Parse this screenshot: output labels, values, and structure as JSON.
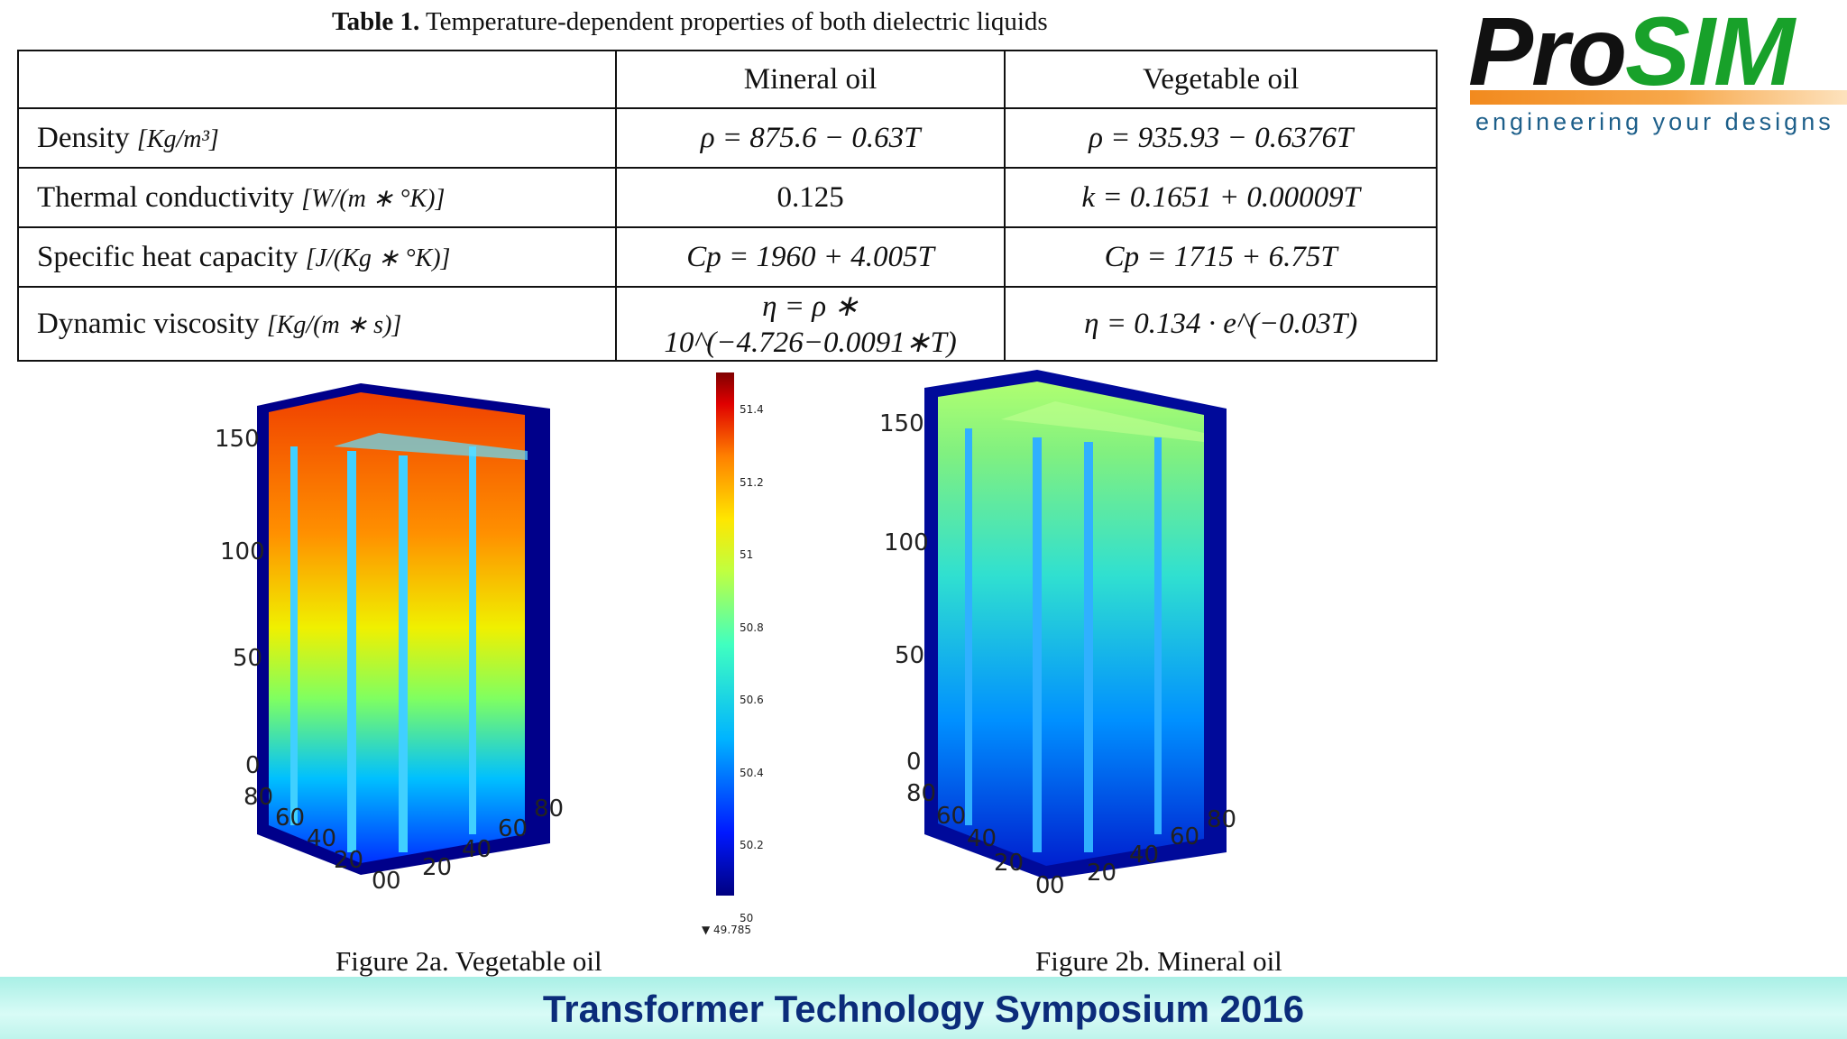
{
  "caption": {
    "bold": "Table 1.",
    "text": " Temperature-dependent properties of both dielectric liquids"
  },
  "table": {
    "headers": [
      "",
      "Mineral oil",
      "Vegetable oil"
    ],
    "rows": [
      {
        "label": "Density ",
        "unit": "[Kg/m³]",
        "mineral": "ρ = 875.6 − 0.63T",
        "vegetable": "ρ = 935.93 − 0.6376T"
      },
      {
        "label": "Thermal conductivity ",
        "unit": "[W/(m ∗ °K)]",
        "mineral": "0.125",
        "vegetable": "k = 0.1651 + 0.00009T"
      },
      {
        "label": "Specific heat capacity ",
        "unit": "[J/(Kg ∗ °K)]",
        "mineral": "Cp = 1960 + 4.005T",
        "vegetable": "Cp = 1715 + 6.75T"
      },
      {
        "label": "Dynamic viscosity ",
        "unit": "[Kg/(m ∗ s)]",
        "mineral": "η = ρ ∗ 10^(−4.726−0.0091∗T)",
        "vegetable": "η = 0.134 · e^(−0.03T)"
      }
    ]
  },
  "logo": {
    "pro": "Pro",
    "sim": "SIM",
    "tagline": "engineering your designs"
  },
  "figures": {
    "a": {
      "caption": "Figure 2a. Vegetable oil",
      "z_ticks": [
        "150",
        "100",
        "50",
        "0"
      ],
      "x_ticks": [
        "80",
        "60",
        "40",
        "20",
        "0"
      ],
      "y_ticks": [
        "0",
        "20",
        "40",
        "60",
        "80"
      ]
    },
    "b": {
      "caption": "Figure 2b. Mineral oil",
      "z_ticks": [
        "150",
        "100",
        "50",
        "0"
      ],
      "x_ticks": [
        "80",
        "60",
        "40",
        "20",
        "0"
      ],
      "y_ticks": [
        "0",
        "20",
        "40",
        "60",
        "80"
      ]
    }
  },
  "colorbar": {
    "labels": [
      "51.4",
      "51.2",
      "51",
      "50.8",
      "50.6",
      "50.4",
      "50.2",
      "50"
    ],
    "min_label": "▼ 49.785"
  },
  "footer": {
    "title": "Transformer Technology Symposium 2016"
  },
  "colors": {
    "logo_green": "#18a12a",
    "logo_orange": "#f28a1e",
    "footer_text": "#0b2c7a"
  }
}
